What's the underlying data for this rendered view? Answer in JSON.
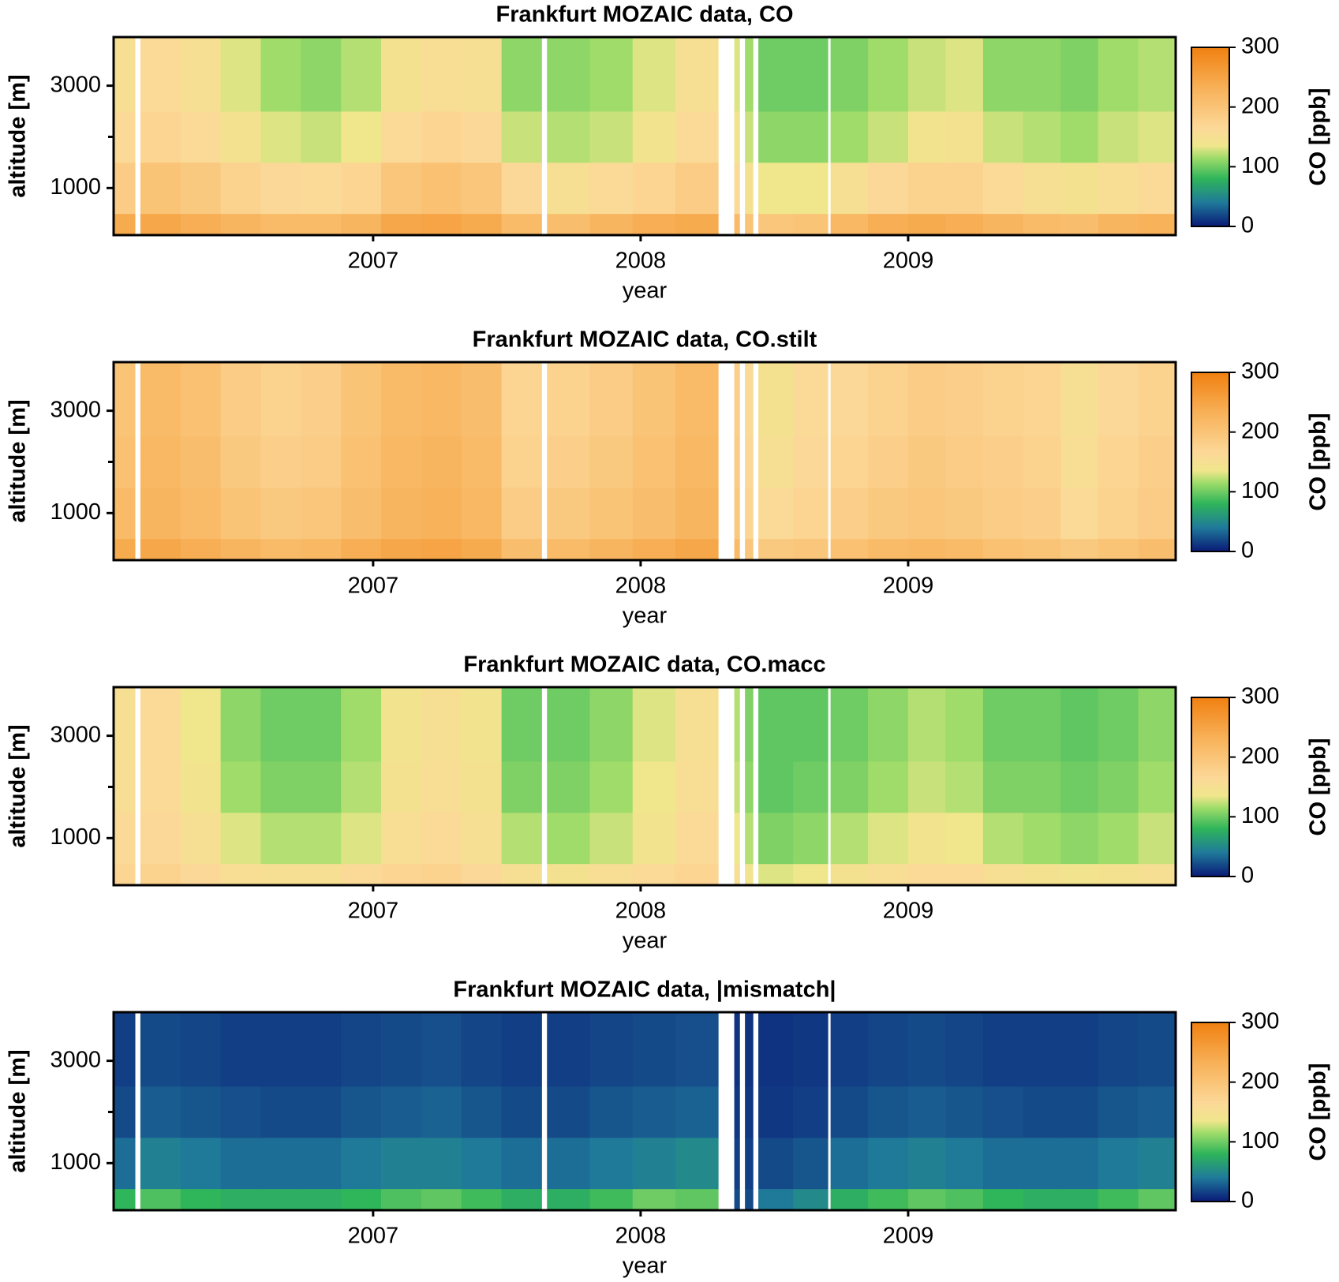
{
  "chart_data": [
    {
      "type": "heatmap",
      "title": "Frankfurt MOZAIC data, CO",
      "xlabel": "year",
      "ylabel": "altitude [m]",
      "colorbar_label": "CO [ppb]",
      "xbins": [
        2006.03,
        2006.11,
        2006.13,
        2006.28,
        2006.43,
        2006.58,
        2006.73,
        2006.88,
        2007.03,
        2007.18,
        2007.33,
        2007.48,
        2007.63,
        2007.65,
        2007.81,
        2007.97,
        2008.13,
        2008.29,
        2008.35,
        2008.37,
        2008.39,
        2008.42,
        2008.44,
        2008.57,
        2008.7,
        2008.71,
        2008.85,
        2009.0,
        2009.14,
        2009.28,
        2009.43,
        2009.57,
        2009.71,
        2009.86,
        2010.0
      ],
      "ybins": [
        80,
        500,
        1500,
        2500,
        3950
      ],
      "z": [
        [
          240,
          null,
          245,
          235,
          225,
          215,
          215,
          225,
          245,
          250,
          240,
          215,
          null,
          210,
          225,
          235,
          240,
          null,
          215,
          null,
          200,
          null,
          195,
          200,
          null,
          220,
          235,
          240,
          235,
          225,
          215,
          210,
          225,
          230
        ],
        [
          185,
          null,
          200,
          190,
          175,
          165,
          160,
          170,
          195,
          205,
          195,
          165,
          null,
          150,
          160,
          170,
          185,
          null,
          160,
          null,
          145,
          null,
          135,
          135,
          null,
          150,
          165,
          175,
          175,
          160,
          150,
          145,
          155,
          160
        ],
        [
          160,
          null,
          170,
          160,
          145,
          130,
          125,
          135,
          160,
          170,
          165,
          125,
          null,
          120,
          125,
          140,
          160,
          null,
          140,
          null,
          125,
          null,
          110,
          110,
          null,
          115,
          125,
          140,
          145,
          125,
          120,
          115,
          125,
          130
        ],
        [
          150,
          null,
          160,
          150,
          130,
          115,
          110,
          120,
          145,
          155,
          150,
          110,
          null,
          110,
          115,
          130,
          150,
          null,
          130,
          null,
          115,
          null,
          100,
          100,
          null,
          105,
          115,
          125,
          130,
          110,
          110,
          105,
          115,
          120
        ]
      ],
      "xlim": [
        2006.03,
        2010.0
      ],
      "xticks": [
        2007,
        2008,
        2009
      ],
      "ylim": [
        80,
        3950
      ],
      "yticks": [
        1000,
        3000
      ],
      "yminorticks": [
        2000
      ],
      "clim": [
        0,
        300
      ],
      "cticks": [
        0,
        100,
        200,
        300
      ],
      "colorscale": [
        [
          0,
          "#0a1a78"
        ],
        [
          40,
          "#1f7a9a"
        ],
        [
          80,
          "#2fb55a"
        ],
        [
          115,
          "#9fdc6a"
        ],
        [
          135,
          "#f0e68c"
        ],
        [
          165,
          "#fcd898"
        ],
        [
          230,
          "#f8b25a"
        ],
        [
          300,
          "#f08010"
        ]
      ]
    },
    {
      "type": "heatmap",
      "title": "Frankfurt MOZAIC data, CO.stilt",
      "xlabel": "year",
      "ylabel": "altitude [m]",
      "colorbar_label": "CO [ppb]",
      "xbins": [
        2006.03,
        2006.11,
        2006.13,
        2006.28,
        2006.43,
        2006.58,
        2006.73,
        2006.88,
        2007.03,
        2007.18,
        2007.33,
        2007.48,
        2007.63,
        2007.65,
        2007.81,
        2007.97,
        2008.13,
        2008.29,
        2008.35,
        2008.37,
        2008.39,
        2008.42,
        2008.44,
        2008.57,
        2008.7,
        2008.71,
        2008.85,
        2009.0,
        2009.14,
        2009.28,
        2009.43,
        2009.57,
        2009.71,
        2009.86,
        2010.0
      ],
      "ybins": [
        80,
        500,
        1500,
        2500,
        3950
      ],
      "z": [
        [
          240,
          null,
          245,
          235,
          225,
          215,
          220,
          235,
          245,
          250,
          240,
          210,
          null,
          215,
          225,
          235,
          245,
          null,
          215,
          null,
          195,
          null,
          190,
          195,
          null,
          205,
          215,
          220,
          215,
          205,
          200,
          190,
          200,
          210
        ],
        [
          215,
          null,
          225,
          215,
          200,
          190,
          195,
          210,
          225,
          230,
          220,
          185,
          null,
          190,
          200,
          210,
          225,
          null,
          190,
          null,
          170,
          null,
          160,
          170,
          null,
          180,
          190,
          195,
          190,
          185,
          180,
          160,
          175,
          185
        ],
        [
          205,
          null,
          220,
          210,
          190,
          180,
          185,
          205,
          220,
          225,
          215,
          175,
          null,
          180,
          190,
          205,
          220,
          null,
          185,
          null,
          165,
          null,
          150,
          165,
          null,
          170,
          180,
          190,
          185,
          180,
          175,
          155,
          170,
          180
        ],
        [
          200,
          null,
          215,
          205,
          185,
          175,
          180,
          200,
          215,
          220,
          210,
          170,
          null,
          175,
          185,
          200,
          215,
          null,
          180,
          null,
          160,
          null,
          145,
          160,
          null,
          165,
          175,
          185,
          180,
          175,
          170,
          150,
          165,
          175
        ]
      ],
      "xlim": [
        2006.03,
        2010.0
      ],
      "xticks": [
        2007,
        2008,
        2009
      ],
      "ylim": [
        80,
        3950
      ],
      "yticks": [
        1000,
        3000
      ],
      "yminorticks": [
        2000
      ],
      "clim": [
        0,
        300
      ],
      "cticks": [
        0,
        100,
        200,
        300
      ],
      "colorscale": [
        [
          0,
          "#0a1a78"
        ],
        [
          40,
          "#1f7a9a"
        ],
        [
          80,
          "#2fb55a"
        ],
        [
          115,
          "#9fdc6a"
        ],
        [
          135,
          "#f0e68c"
        ],
        [
          165,
          "#fcd898"
        ],
        [
          230,
          "#f8b25a"
        ],
        [
          300,
          "#f08010"
        ]
      ]
    },
    {
      "type": "heatmap",
      "title": "Frankfurt MOZAIC data, CO.macc",
      "xlabel": "year",
      "ylabel": "altitude [m]",
      "colorbar_label": "CO [ppb]",
      "xbins": [
        2006.03,
        2006.11,
        2006.13,
        2006.28,
        2006.43,
        2006.58,
        2006.73,
        2006.88,
        2007.03,
        2007.18,
        2007.33,
        2007.48,
        2007.63,
        2007.65,
        2007.81,
        2007.97,
        2008.13,
        2008.29,
        2008.35,
        2008.37,
        2008.39,
        2008.42,
        2008.44,
        2008.57,
        2008.7,
        2008.71,
        2008.85,
        2009.0,
        2009.14,
        2009.28,
        2009.43,
        2009.57,
        2009.71,
        2009.86,
        2010.0
      ],
      "ybins": [
        80,
        500,
        1500,
        2500,
        3950
      ],
      "z": [
        [
          170,
          null,
          175,
          165,
          155,
          150,
          150,
          160,
          170,
          175,
          165,
          150,
          null,
          145,
          155,
          160,
          170,
          null,
          150,
          null,
          140,
          null,
          130,
          135,
          null,
          145,
          155,
          160,
          160,
          150,
          145,
          140,
          145,
          150
        ],
        [
          160,
          null,
          165,
          150,
          130,
          120,
          120,
          130,
          155,
          160,
          150,
          120,
          null,
          115,
          125,
          140,
          160,
          null,
          135,
          null,
          120,
          null,
          105,
          110,
          null,
          120,
          130,
          140,
          135,
          120,
          115,
          110,
          115,
          125
        ],
        [
          155,
          null,
          160,
          140,
          115,
          105,
          105,
          120,
          145,
          155,
          145,
          105,
          null,
          105,
          115,
          135,
          155,
          null,
          125,
          null,
          110,
          null,
          95,
          100,
          null,
          105,
          115,
          125,
          120,
          105,
          105,
          100,
          105,
          115
        ],
        [
          150,
          null,
          160,
          135,
          110,
          100,
          100,
          115,
          140,
          150,
          140,
          100,
          null,
          100,
          110,
          130,
          150,
          null,
          120,
          null,
          105,
          null,
          95,
          95,
          null,
          100,
          110,
          120,
          115,
          100,
          100,
          95,
          100,
          110
        ]
      ],
      "xlim": [
        2006.03,
        2010.0
      ],
      "xticks": [
        2007,
        2008,
        2009
      ],
      "ylim": [
        80,
        3950
      ],
      "yticks": [
        1000,
        3000
      ],
      "yminorticks": [
        2000
      ],
      "clim": [
        0,
        300
      ],
      "cticks": [
        0,
        100,
        200,
        300
      ],
      "colorscale": [
        [
          0,
          "#0a1a78"
        ],
        [
          40,
          "#1f7a9a"
        ],
        [
          80,
          "#2fb55a"
        ],
        [
          115,
          "#9fdc6a"
        ],
        [
          135,
          "#f0e68c"
        ],
        [
          165,
          "#fcd898"
        ],
        [
          230,
          "#f8b25a"
        ],
        [
          300,
          "#f08010"
        ]
      ]
    },
    {
      "type": "heatmap",
      "title": "Frankfurt MOZAIC data, |mismatch|",
      "xlabel": "year",
      "ylabel": "altitude [m]",
      "colorbar_label": "CO [ppb]",
      "xbins": [
        2006.03,
        2006.11,
        2006.13,
        2006.28,
        2006.43,
        2006.58,
        2006.73,
        2006.88,
        2007.03,
        2007.18,
        2007.33,
        2007.48,
        2007.63,
        2007.65,
        2007.81,
        2007.97,
        2008.13,
        2008.29,
        2008.35,
        2008.37,
        2008.39,
        2008.42,
        2008.44,
        2008.57,
        2008.7,
        2008.71,
        2008.85,
        2009.0,
        2009.14,
        2009.28,
        2009.43,
        2009.57,
        2009.71,
        2009.86,
        2010.0
      ],
      "ybins": [
        80,
        500,
        1500,
        2500,
        3950
      ],
      "z": [
        [
          80,
          null,
          90,
          80,
          75,
          75,
          75,
          80,
          90,
          95,
          85,
          75,
          null,
          75,
          85,
          100,
          95,
          null,
          20,
          null,
          20,
          null,
          40,
          50,
          null,
          75,
          85,
          95,
          90,
          80,
          75,
          75,
          85,
          95
        ],
        [
          35,
          null,
          45,
          40,
          35,
          35,
          35,
          40,
          45,
          45,
          40,
          35,
          null,
          35,
          40,
          45,
          50,
          null,
          15,
          null,
          15,
          null,
          20,
          25,
          null,
          35,
          40,
          45,
          40,
          35,
          35,
          35,
          40,
          45
        ],
        [
          20,
          null,
          28,
          25,
          22,
          20,
          20,
          25,
          28,
          30,
          25,
          20,
          null,
          20,
          25,
          28,
          30,
          null,
          12,
          null,
          12,
          null,
          12,
          15,
          null,
          20,
          25,
          28,
          25,
          22,
          20,
          20,
          25,
          28
        ],
        [
          15,
          null,
          20,
          18,
          15,
          15,
          15,
          18,
          20,
          22,
          18,
          15,
          null,
          15,
          18,
          20,
          22,
          null,
          10,
          null,
          10,
          null,
          10,
          12,
          null,
          15,
          18,
          20,
          18,
          15,
          15,
          15,
          18,
          20
        ]
      ],
      "xlim": [
        2006.03,
        2010.0
      ],
      "xticks": [
        2007,
        2008,
        2009
      ],
      "ylim": [
        80,
        3950
      ],
      "yticks": [
        1000,
        3000
      ],
      "yminorticks": [
        2000
      ],
      "clim": [
        0,
        300
      ],
      "cticks": [
        0,
        100,
        200,
        300
      ],
      "colorscale": [
        [
          0,
          "#0a1a78"
        ],
        [
          40,
          "#1f7a9a"
        ],
        [
          80,
          "#2fb55a"
        ],
        [
          115,
          "#9fdc6a"
        ],
        [
          135,
          "#f0e68c"
        ],
        [
          165,
          "#fcd898"
        ],
        [
          230,
          "#f8b25a"
        ],
        [
          300,
          "#f08010"
        ]
      ]
    }
  ]
}
